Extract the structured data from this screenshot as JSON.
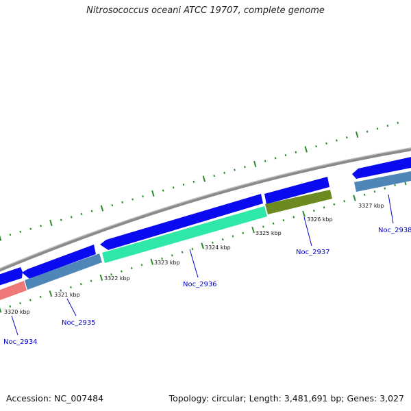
{
  "title": "Nitrosococcus oceani ATCC 19707, complete genome",
  "footer": {
    "accession": "Accession: NC_007484",
    "summary": "Topology: circular; Length: 3,481,691 bp; Genes: 3,027"
  },
  "colors": {
    "backbone": "#8a8a8a",
    "dots": "#2b8a2b",
    "tick": "#1f7a1f",
    "label": "#0000cc",
    "leader": "#0000cc",
    "forward_gene": "#0a0af0",
    "reverse_gene": "#4f86b8"
  },
  "ticks": [
    {
      "label": "3320 kbp"
    },
    {
      "label": "3321 kbp"
    },
    {
      "label": "3322 kbp"
    },
    {
      "label": "3323 kbp"
    },
    {
      "label": "3324 kbp"
    },
    {
      "label": "3325 kbp"
    },
    {
      "label": "3326 kbp"
    },
    {
      "label": "3327 kbp"
    }
  ],
  "genes": [
    {
      "name": "Noc_2934",
      "color": "#ee7777"
    },
    {
      "name": "Noc_2935",
      "color": "#4f86b8"
    },
    {
      "name": "Noc_2936",
      "color": "#2de8a8"
    },
    {
      "name": "Noc_2937",
      "color": "#6b8a1f"
    },
    {
      "name": "Noc_2938",
      "color": "#4f86b8"
    }
  ]
}
